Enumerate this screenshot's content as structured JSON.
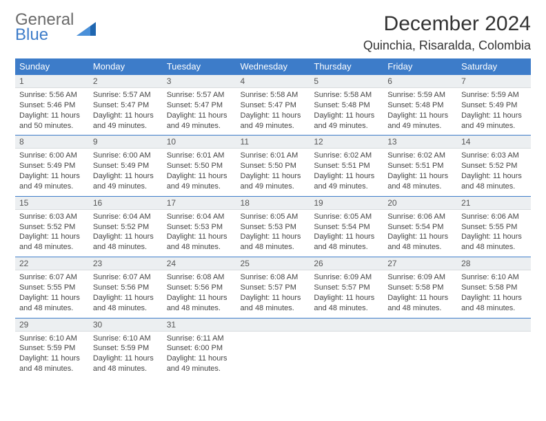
{
  "logo": {
    "line1": "General",
    "line2": "Blue"
  },
  "title": "December 2024",
  "location": "Quinchia, Risaralda, Colombia",
  "colors": {
    "header_bg": "#3d7cc9",
    "header_fg": "#ffffff",
    "daynum_bg": "#eceff1",
    "border": "#3d7cc9",
    "logo_gray": "#6a6a6a",
    "logo_blue": "#3d7cc9"
  },
  "day_headers": [
    "Sunday",
    "Monday",
    "Tuesday",
    "Wednesday",
    "Thursday",
    "Friday",
    "Saturday"
  ],
  "weeks": [
    [
      {
        "n": "1",
        "sr": "5:56 AM",
        "ss": "5:46 PM",
        "dl": "11 hours and 50 minutes."
      },
      {
        "n": "2",
        "sr": "5:57 AM",
        "ss": "5:47 PM",
        "dl": "11 hours and 49 minutes."
      },
      {
        "n": "3",
        "sr": "5:57 AM",
        "ss": "5:47 PM",
        "dl": "11 hours and 49 minutes."
      },
      {
        "n": "4",
        "sr": "5:58 AM",
        "ss": "5:47 PM",
        "dl": "11 hours and 49 minutes."
      },
      {
        "n": "5",
        "sr": "5:58 AM",
        "ss": "5:48 PM",
        "dl": "11 hours and 49 minutes."
      },
      {
        "n": "6",
        "sr": "5:59 AM",
        "ss": "5:48 PM",
        "dl": "11 hours and 49 minutes."
      },
      {
        "n": "7",
        "sr": "5:59 AM",
        "ss": "5:49 PM",
        "dl": "11 hours and 49 minutes."
      }
    ],
    [
      {
        "n": "8",
        "sr": "6:00 AM",
        "ss": "5:49 PM",
        "dl": "11 hours and 49 minutes."
      },
      {
        "n": "9",
        "sr": "6:00 AM",
        "ss": "5:49 PM",
        "dl": "11 hours and 49 minutes."
      },
      {
        "n": "10",
        "sr": "6:01 AM",
        "ss": "5:50 PM",
        "dl": "11 hours and 49 minutes."
      },
      {
        "n": "11",
        "sr": "6:01 AM",
        "ss": "5:50 PM",
        "dl": "11 hours and 49 minutes."
      },
      {
        "n": "12",
        "sr": "6:02 AM",
        "ss": "5:51 PM",
        "dl": "11 hours and 49 minutes."
      },
      {
        "n": "13",
        "sr": "6:02 AM",
        "ss": "5:51 PM",
        "dl": "11 hours and 48 minutes."
      },
      {
        "n": "14",
        "sr": "6:03 AM",
        "ss": "5:52 PM",
        "dl": "11 hours and 48 minutes."
      }
    ],
    [
      {
        "n": "15",
        "sr": "6:03 AM",
        "ss": "5:52 PM",
        "dl": "11 hours and 48 minutes."
      },
      {
        "n": "16",
        "sr": "6:04 AM",
        "ss": "5:52 PM",
        "dl": "11 hours and 48 minutes."
      },
      {
        "n": "17",
        "sr": "6:04 AM",
        "ss": "5:53 PM",
        "dl": "11 hours and 48 minutes."
      },
      {
        "n": "18",
        "sr": "6:05 AM",
        "ss": "5:53 PM",
        "dl": "11 hours and 48 minutes."
      },
      {
        "n": "19",
        "sr": "6:05 AM",
        "ss": "5:54 PM",
        "dl": "11 hours and 48 minutes."
      },
      {
        "n": "20",
        "sr": "6:06 AM",
        "ss": "5:54 PM",
        "dl": "11 hours and 48 minutes."
      },
      {
        "n": "21",
        "sr": "6:06 AM",
        "ss": "5:55 PM",
        "dl": "11 hours and 48 minutes."
      }
    ],
    [
      {
        "n": "22",
        "sr": "6:07 AM",
        "ss": "5:55 PM",
        "dl": "11 hours and 48 minutes."
      },
      {
        "n": "23",
        "sr": "6:07 AM",
        "ss": "5:56 PM",
        "dl": "11 hours and 48 minutes."
      },
      {
        "n": "24",
        "sr": "6:08 AM",
        "ss": "5:56 PM",
        "dl": "11 hours and 48 minutes."
      },
      {
        "n": "25",
        "sr": "6:08 AM",
        "ss": "5:57 PM",
        "dl": "11 hours and 48 minutes."
      },
      {
        "n": "26",
        "sr": "6:09 AM",
        "ss": "5:57 PM",
        "dl": "11 hours and 48 minutes."
      },
      {
        "n": "27",
        "sr": "6:09 AM",
        "ss": "5:58 PM",
        "dl": "11 hours and 48 minutes."
      },
      {
        "n": "28",
        "sr": "6:10 AM",
        "ss": "5:58 PM",
        "dl": "11 hours and 48 minutes."
      }
    ],
    [
      {
        "n": "29",
        "sr": "6:10 AM",
        "ss": "5:59 PM",
        "dl": "11 hours and 48 minutes."
      },
      {
        "n": "30",
        "sr": "6:10 AM",
        "ss": "5:59 PM",
        "dl": "11 hours and 48 minutes."
      },
      {
        "n": "31",
        "sr": "6:11 AM",
        "ss": "6:00 PM",
        "dl": "11 hours and 49 minutes."
      },
      null,
      null,
      null,
      null
    ]
  ],
  "labels": {
    "sunrise": "Sunrise:",
    "sunset": "Sunset:",
    "daylight": "Daylight:"
  }
}
